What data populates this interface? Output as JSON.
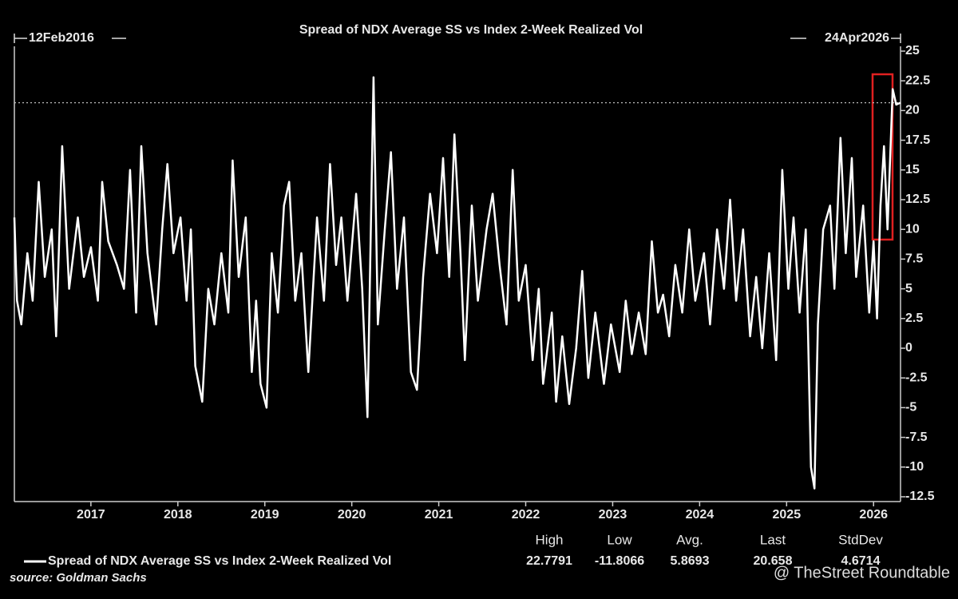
{
  "chart_data": {
    "type": "line",
    "title": "Spread of NDX Average SS vs Index 2-Week Realized Vol",
    "start_label": "12Feb2016",
    "end_label": "24Apr2026",
    "x": [
      2016.12,
      2016.15,
      2016.2,
      2016.27,
      2016.33,
      2016.4,
      2016.47,
      2016.55,
      2016.6,
      2016.67,
      2016.75,
      2016.85,
      2016.92,
      2017.0,
      2017.08,
      2017.13,
      2017.2,
      2017.3,
      2017.38,
      2017.45,
      2017.52,
      2017.58,
      2017.65,
      2017.75,
      2017.82,
      2017.88,
      2017.95,
      2018.03,
      2018.1,
      2018.15,
      2018.2,
      2018.28,
      2018.35,
      2018.42,
      2018.5,
      2018.58,
      2018.63,
      2018.7,
      2018.78,
      2018.85,
      2018.9,
      2018.95,
      2019.02,
      2019.08,
      2019.15,
      2019.22,
      2019.28,
      2019.35,
      2019.42,
      2019.5,
      2019.6,
      2019.68,
      2019.75,
      2019.82,
      2019.88,
      2019.95,
      2020.05,
      2020.12,
      2020.18,
      2020.25,
      2020.3,
      2020.38,
      2020.45,
      2020.52,
      2020.6,
      2020.68,
      2020.75,
      2020.82,
      2020.9,
      2020.98,
      2021.05,
      2021.12,
      2021.18,
      2021.25,
      2021.3,
      2021.38,
      2021.45,
      2021.55,
      2021.62,
      2021.7,
      2021.78,
      2021.85,
      2021.92,
      2022.0,
      2022.08,
      2022.15,
      2022.2,
      2022.3,
      2022.35,
      2022.42,
      2022.5,
      2022.58,
      2022.65,
      2022.72,
      2022.8,
      2022.9,
      2022.98,
      2023.08,
      2023.15,
      2023.22,
      2023.3,
      2023.38,
      2023.45,
      2023.52,
      2023.58,
      2023.65,
      2023.72,
      2023.8,
      2023.88,
      2023.95,
      2024.05,
      2024.12,
      2024.2,
      2024.28,
      2024.35,
      2024.42,
      2024.5,
      2024.58,
      2024.65,
      2024.72,
      2024.8,
      2024.88,
      2024.95,
      2025.02,
      2025.08,
      2025.15,
      2025.22,
      2025.28,
      2025.32,
      2025.36,
      2025.42,
      2025.5,
      2025.55,
      2025.62,
      2025.68,
      2025.75,
      2025.8,
      2025.88,
      2025.95,
      2026.0,
      2026.04,
      2026.08,
      2026.12,
      2026.16,
      2026.22,
      2026.26,
      2026.31
    ],
    "series": [
      {
        "name": "Spread of NDX Average SS vs Index 2-Week Realized Vol",
        "color": "#ffffff",
        "values": [
          11,
          4,
          2,
          8,
          4,
          14,
          6,
          10,
          1,
          17,
          5,
          11,
          6,
          8.5,
          4,
          14,
          9,
          7,
          5,
          15,
          3,
          17,
          8,
          2,
          10,
          15.5,
          8,
          11,
          4,
          10,
          -1.5,
          -4.5,
          5,
          2,
          8,
          3,
          15.8,
          6,
          11,
          -2,
          4,
          -3,
          -5,
          8,
          3,
          12,
          14,
          4,
          8,
          -2,
          11,
          4,
          15.5,
          7,
          11,
          4,
          13,
          5,
          -5.8,
          22.8,
          2,
          10,
          16.5,
          5,
          11,
          -2,
          -3.5,
          6,
          13,
          8,
          16,
          6,
          18,
          8,
          -1,
          12,
          4,
          10,
          13,
          7,
          2,
          15,
          4,
          7,
          -1,
          5,
          -3,
          3,
          -4.5,
          1,
          -4.7,
          0,
          6.5,
          -2.5,
          3,
          -3,
          2,
          -2,
          4,
          -0.5,
          3,
          -0.5,
          9,
          3,
          4.5,
          1,
          7,
          3,
          10,
          4,
          8,
          2,
          10,
          5,
          12.5,
          4,
          10,
          1,
          6,
          0,
          8,
          -1,
          15,
          5,
          11,
          3,
          10,
          -10,
          -11.8,
          2,
          10,
          12,
          5,
          17.7,
          8,
          16,
          6,
          12,
          3,
          9,
          2.5,
          12,
          17,
          10,
          21.8,
          20.5,
          20.658
        ]
      }
    ],
    "xlim": [
      2016.12,
      2026.31
    ],
    "xticks": [
      2017,
      2018,
      2019,
      2020,
      2021,
      2022,
      2023,
      2024,
      2025,
      2026
    ],
    "ylim": [
      -12.5,
      25
    ],
    "yticks": [
      25,
      22.5,
      20,
      17.5,
      15,
      12.5,
      10,
      7.5,
      5,
      2.5,
      0,
      -2.5,
      -5,
      -7.5,
      -10,
      -12.5
    ],
    "stats": {
      "headers": [
        "High",
        "Low",
        "Avg.",
        "Last",
        "StdDev"
      ],
      "values": [
        22.7791,
        -11.8066,
        5.8693,
        20.658,
        4.6714
      ]
    },
    "source": "source: Goldman Sachs",
    "watermark": "@ TheStreet Roundtable"
  }
}
